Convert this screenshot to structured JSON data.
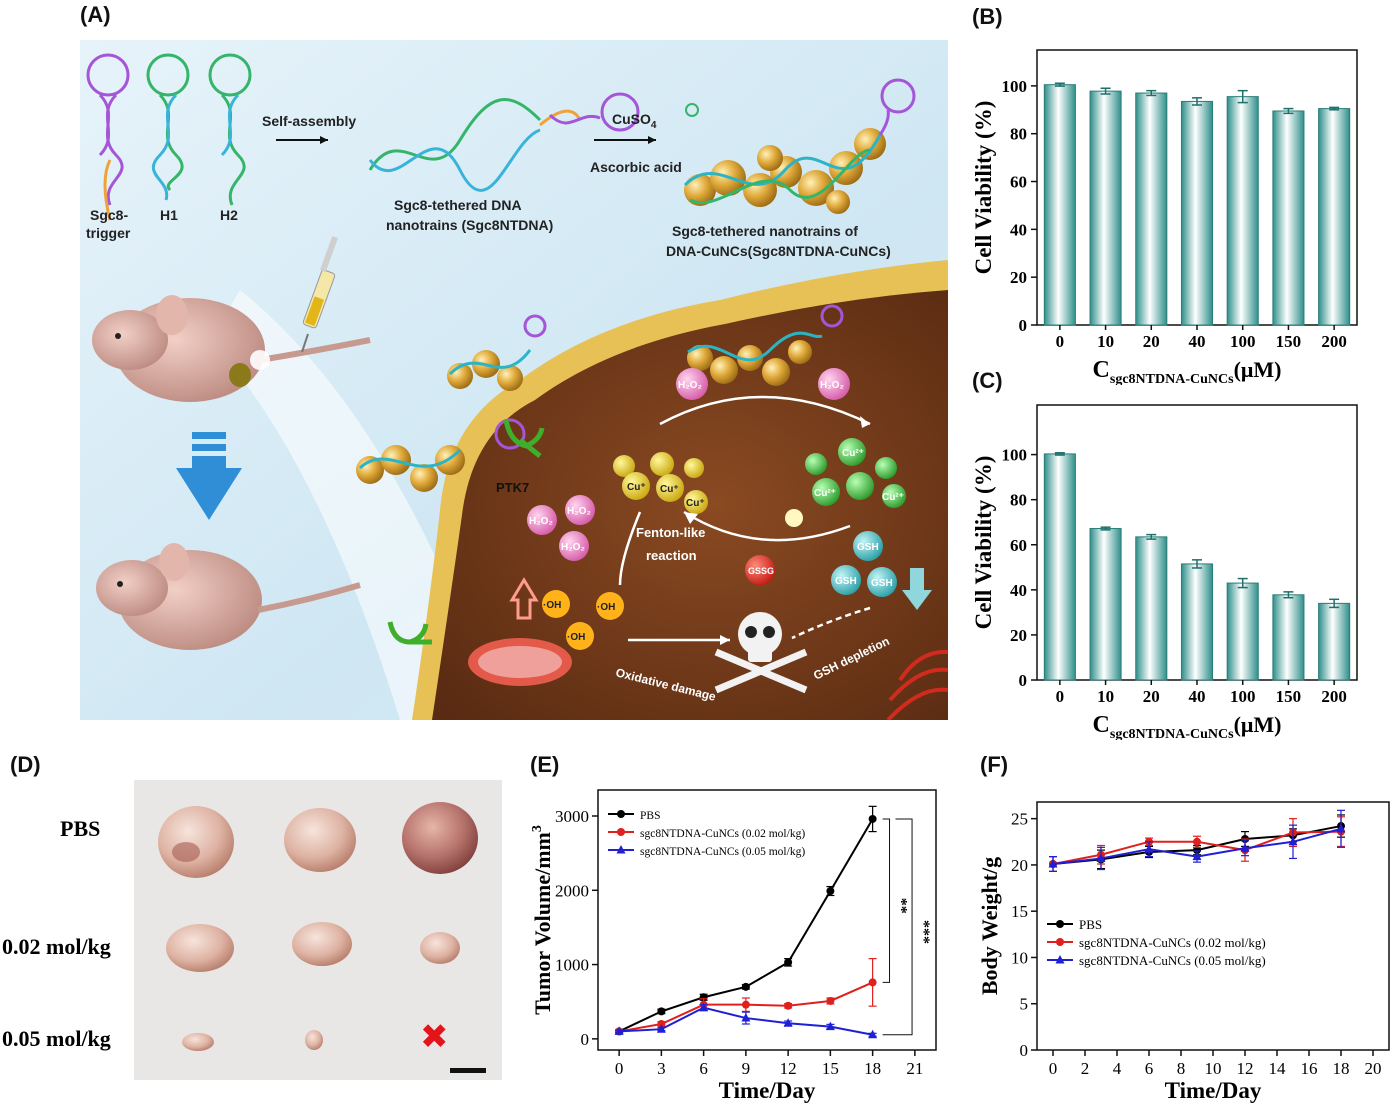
{
  "panel_labels": {
    "a": "(A)",
    "b": "(B)",
    "c": "(C)",
    "d": "(D)",
    "e": "(E)",
    "f": "(F)"
  },
  "schematic": {
    "strands": [
      "Sgc8-",
      "trigger",
      "H1",
      "H2"
    ],
    "step1": "Self-assembly",
    "product1_line1": "Sgc8-tethered DNA",
    "product1_line2": "nanotrains (Sgc8NTDNA)",
    "reagent1": "CuSO",
    "reagent1_sub": "4",
    "reagent2": "Ascorbic acid",
    "product2_line1": "Sgc8-tethered nanotrains of",
    "product2_line2": "DNA-CuNCs(Sgc8NTDNA-CuNCs)",
    "receptor": "PTK7",
    "h2o2": "H₂O₂",
    "cu1": "Cu⁺",
    "cu2": "Cu²⁺",
    "fenton_line1": "Fenton-like",
    "fenton_line2": "reaction",
    "hydroxyl": "·OH",
    "gsh": "GSH",
    "gssg": "GSSG",
    "oxidative": "Oxidative damage",
    "depletion": "GSH depletion"
  },
  "photo": {
    "rows": [
      "PBS",
      "0.02 mol/kg",
      "0.05 mol/kg"
    ],
    "missing_mark": "✖"
  },
  "chart_data": [
    {
      "id": "B",
      "type": "bar",
      "ylabel": "Cell Viability (%)",
      "xlabel_main": "C",
      "xlabel_sub": "sgc8NTDNA-CuNCs",
      "xlabel_unit": "(μM)",
      "categories": [
        "0",
        "10",
        "20",
        "40",
        "100",
        "150",
        "200"
      ],
      "values": [
        100.5,
        97.8,
        97.0,
        93.5,
        95.5,
        89.5,
        90.5
      ],
      "errors": [
        0.6,
        1.2,
        1.0,
        1.5,
        2.5,
        1.0,
        0.5
      ],
      "yticks": [
        "0",
        "20",
        "40",
        "60",
        "80",
        "100"
      ],
      "ylim": [
        0,
        115
      ]
    },
    {
      "id": "C",
      "type": "bar",
      "ylabel": "Cell Viability (%)",
      "xlabel_main": "C",
      "xlabel_sub": "sgc8NTDNA-CuNCs",
      "xlabel_unit": "(μM)",
      "categories": [
        "0",
        "10",
        "20",
        "40",
        "100",
        "150",
        "200"
      ],
      "values": [
        100.3,
        67.2,
        63.5,
        51.5,
        43.0,
        37.8,
        34.0
      ],
      "errors": [
        0.5,
        0.6,
        1.0,
        1.8,
        2.0,
        1.3,
        1.8
      ],
      "yticks": [
        "0",
        "20",
        "40",
        "60",
        "80",
        "100"
      ],
      "ylim": [
        0,
        122
      ]
    },
    {
      "id": "E",
      "type": "line",
      "ylabel": "Tumor Volume/mm",
      "ylabel_sup": "3",
      "xlabel": "Time/Day",
      "x": [
        0,
        3,
        6,
        9,
        12,
        15,
        18
      ],
      "xticks": [
        "0",
        "3",
        "6",
        "9",
        "12",
        "15",
        "18",
        "21"
      ],
      "yticks": [
        "0",
        "1000",
        "2000",
        "3000"
      ],
      "xlim": [
        -1.5,
        22.5
      ],
      "ylim": [
        -150,
        3350
      ],
      "series": [
        {
          "name": "PBS",
          "color": "#000000",
          "values": [
            100,
            370,
            560,
            700,
            1030,
            1990,
            2960
          ],
          "errors": [
            20,
            30,
            40,
            30,
            50,
            60,
            170
          ]
        },
        {
          "name": "sgc8NTDNA-CuNCs (0.02 mol/kg)",
          "color": "#e0201c",
          "values": [
            100,
            200,
            460,
            460,
            445,
            510,
            760
          ],
          "errors": [
            20,
            30,
            80,
            90,
            30,
            40,
            320
          ]
        },
        {
          "name": "sgc8NTDNA-CuNCs (0.05 mol/kg)",
          "color": "#1f1fd6",
          "values": [
            100,
            130,
            420,
            280,
            210,
            165,
            55
          ],
          "errors": [
            20,
            20,
            40,
            80,
            30,
            30,
            20
          ]
        }
      ],
      "sig1": "**",
      "sig2": "***"
    },
    {
      "id": "F",
      "type": "line",
      "ylabel": "Body Weight/g",
      "xlabel": "Time/Day",
      "x": [
        0,
        3,
        6,
        9,
        12,
        15,
        18
      ],
      "xticks": [
        "0",
        "2",
        "4",
        "6",
        "8",
        "10",
        "12",
        "14",
        "16",
        "18",
        "20"
      ],
      "yticks": [
        "0",
        "5",
        "10",
        "15",
        "20",
        "25"
      ],
      "xlim": [
        -1,
        21
      ],
      "ylim": [
        0,
        26.8
      ],
      "series": [
        {
          "name": "PBS",
          "color": "#000000",
          "values": [
            20.1,
            20.6,
            21.4,
            21.6,
            22.8,
            23.2,
            24.2
          ],
          "errors": [
            0.8,
            1.0,
            0.6,
            0.5,
            0.8,
            0.7,
            1.2
          ]
        },
        {
          "name": "sgc8NTDNA-CuNCs (0.02 mol/kg)",
          "color": "#e0201c",
          "values": [
            20.1,
            21.1,
            22.5,
            22.5,
            21.6,
            23.5,
            23.6
          ],
          "errors": [
            0.8,
            1.0,
            0.4,
            0.6,
            1.2,
            1.5,
            1.6
          ]
        },
        {
          "name": "sgc8NTDNA-CuNCs (0.05 mol/kg)",
          "color": "#1f1fd6",
          "values": [
            20.1,
            20.7,
            21.7,
            20.9,
            21.8,
            22.5,
            23.9
          ],
          "errors": [
            0.8,
            1.2,
            0.8,
            0.6,
            0.8,
            1.8,
            2.0
          ]
        }
      ]
    }
  ]
}
